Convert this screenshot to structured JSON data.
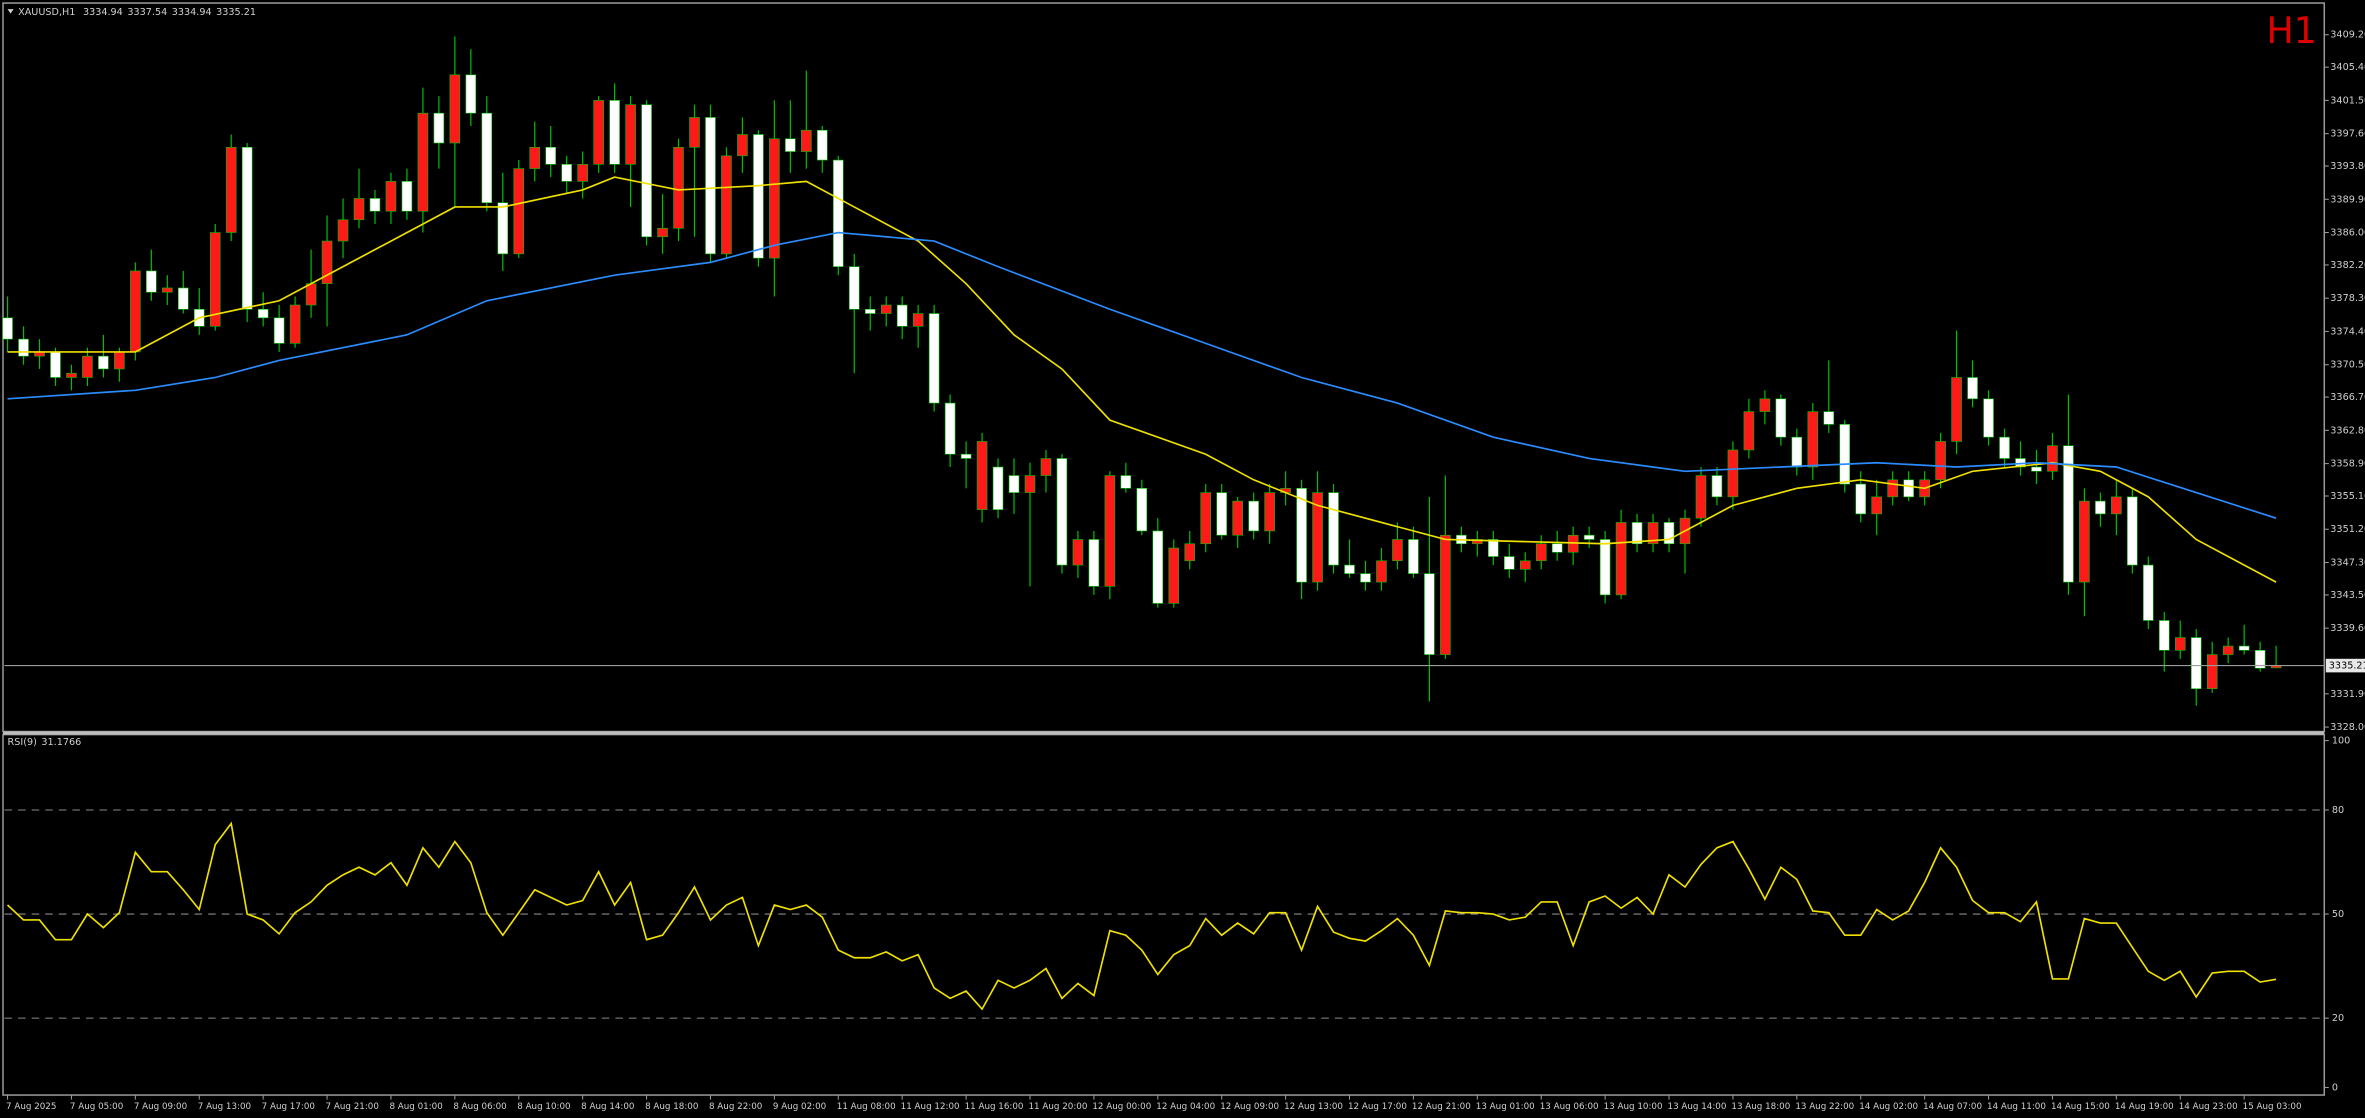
{
  "chart_data": {
    "type": "candlestick",
    "symbol": "XAUUSD,H1",
    "timeframe": "H1",
    "categories": [
      "7 Aug 2025",
      null,
      null,
      null,
      "7 Aug 05:00",
      null,
      null,
      null,
      "7 Aug 09:00",
      null,
      null,
      null,
      "7 Aug 13:00",
      null,
      null,
      null,
      "7 Aug 17:00",
      null,
      null,
      null,
      "7 Aug 21:00",
      null,
      null,
      null,
      "8 Aug 01:00",
      null,
      null,
      null,
      "8 Aug 06:00",
      null,
      null,
      null,
      "8 Aug 10:00",
      null,
      null,
      null,
      "8 Aug 14:00",
      null,
      null,
      null,
      "8 Aug 18:00",
      null,
      null,
      null,
      "8 Aug 22:00",
      null,
      null,
      null,
      "9 Aug 02:00",
      null,
      null,
      null,
      "11 Aug 08:00",
      null,
      null,
      null,
      "11 Aug 12:00",
      null,
      null,
      null,
      "11 Aug 16:00",
      null,
      null,
      null,
      "11 Aug 20:00",
      null,
      null,
      null,
      "12 Aug 00:00",
      null,
      null,
      null,
      "12 Aug 04:00",
      null,
      null,
      null,
      "12 Aug 09:00",
      null,
      null,
      null,
      "12 Aug 13:00",
      null,
      null,
      null,
      "12 Aug 17:00",
      null,
      null,
      null,
      "12 Aug 21:00",
      null,
      null,
      null,
      "13 Aug 01:00",
      null,
      null,
      null,
      "13 Aug 06:00",
      null,
      null,
      null,
      "13 Aug 10:00",
      null,
      null,
      null,
      "13 Aug 14:00",
      null,
      null,
      null,
      "13 Aug 18:00",
      null,
      null,
      null,
      "13 Aug 22:00",
      null,
      null,
      null,
      "14 Aug 02:00",
      null,
      null,
      null,
      "14 Aug 07:00",
      null,
      null,
      null,
      "14 Aug 11:00",
      null,
      null,
      null,
      "14 Aug 15:00",
      null,
      null,
      null,
      "14 Aug 19:00",
      null,
      null,
      null,
      "14 Aug 23:00",
      null,
      null,
      null,
      "15 Aug 03:00",
      null,
      null
    ],
    "ohlc": [
      [
        3376.0,
        3378.5,
        3372.0,
        3373.5
      ],
      [
        3373.5,
        3375.0,
        3370.5,
        3371.5
      ],
      [
        3371.5,
        3373.5,
        3370.0,
        3372.0
      ],
      [
        3372.0,
        3372.5,
        3368.0,
        3369.0
      ],
      [
        3369.0,
        3370.5,
        3367.5,
        3369.5
      ],
      [
        3369.0,
        3372.5,
        3368.0,
        3371.5
      ],
      [
        3371.5,
        3374.0,
        3369.0,
        3370.0
      ],
      [
        3370.0,
        3372.5,
        3368.5,
        3372.0
      ],
      [
        3372.0,
        3382.5,
        3371.0,
        3381.5
      ],
      [
        3381.5,
        3384.0,
        3378.0,
        3379.0
      ],
      [
        3379.0,
        3381.0,
        3377.5,
        3379.5
      ],
      [
        3379.5,
        3381.5,
        3376.5,
        3377.0
      ],
      [
        3377.0,
        3379.5,
        3374.0,
        3375.0
      ],
      [
        3375.0,
        3387.0,
        3374.5,
        3386.0
      ],
      [
        3386.0,
        3397.5,
        3385.0,
        3396.0
      ],
      [
        3396.0,
        3396.5,
        3375.5,
        3377.0
      ],
      [
        3377.0,
        3379.0,
        3375.0,
        3376.0
      ],
      [
        3376.0,
        3377.5,
        3372.0,
        3373.0
      ],
      [
        3373.0,
        3378.5,
        3372.5,
        3377.5
      ],
      [
        3377.5,
        3384.0,
        3376.0,
        3380.0
      ],
      [
        3380.0,
        3388.0,
        3375.0,
        3385.0
      ],
      [
        3385.0,
        3390.0,
        3383.0,
        3387.5
      ],
      [
        3387.5,
        3393.5,
        3386.5,
        3390.0
      ],
      [
        3390.0,
        3391.0,
        3387.0,
        3388.5
      ],
      [
        3388.5,
        3393.0,
        3387.0,
        3392.0
      ],
      [
        3392.0,
        3393.5,
        3387.5,
        3388.5
      ],
      [
        3388.5,
        3403.0,
        3386.0,
        3400.0
      ],
      [
        3400.0,
        3402.0,
        3393.5,
        3396.5
      ],
      [
        3396.5,
        3409.0,
        3389.0,
        3404.5
      ],
      [
        3404.5,
        3407.5,
        3398.5,
        3400.0
      ],
      [
        3400.0,
        3402.0,
        3388.5,
        3389.5
      ],
      [
        3389.5,
        3393.0,
        3381.5,
        3383.5
      ],
      [
        3383.5,
        3394.5,
        3383.0,
        3393.5
      ],
      [
        3393.5,
        3399.0,
        3392.0,
        3396.0
      ],
      [
        3396.0,
        3398.5,
        3392.5,
        3394.0
      ],
      [
        3394.0,
        3395.0,
        3390.5,
        3392.0
      ],
      [
        3392.0,
        3395.5,
        3390.0,
        3394.0
      ],
      [
        3394.0,
        3402.0,
        3393.0,
        3401.5
      ],
      [
        3401.5,
        3403.5,
        3393.0,
        3394.0
      ],
      [
        3394.0,
        3402.0,
        3389.0,
        3401.0
      ],
      [
        3401.0,
        3401.5,
        3384.5,
        3385.5
      ],
      [
        3385.5,
        3390.5,
        3383.5,
        3386.5
      ],
      [
        3386.5,
        3397.0,
        3385.0,
        3396.0
      ],
      [
        3396.0,
        3401.0,
        3385.5,
        3399.5
      ],
      [
        3399.5,
        3401.0,
        3382.5,
        3383.5
      ],
      [
        3383.5,
        3396.0,
        3383.0,
        3395.0
      ],
      [
        3395.0,
        3399.5,
        3393.0,
        3397.5
      ],
      [
        3397.5,
        3398.0,
        3382.0,
        3383.0
      ],
      [
        3383.0,
        3401.5,
        3378.5,
        3397.0
      ],
      [
        3397.0,
        3401.5,
        3393.0,
        3395.5
      ],
      [
        3395.5,
        3405.0,
        3393.5,
        3398.0
      ],
      [
        3398.0,
        3398.5,
        3393.0,
        3394.5
      ],
      [
        3394.5,
        3395.0,
        3381.0,
        3382.0
      ],
      [
        3382.0,
        3383.5,
        3369.5,
        3377.0
      ],
      [
        3377.0,
        3378.5,
        3374.5,
        3376.5
      ],
      [
        3376.5,
        3378.5,
        3375.0,
        3377.5
      ],
      [
        3377.5,
        3378.5,
        3373.5,
        3375.0
      ],
      [
        3375.0,
        3377.5,
        3372.5,
        3376.5
      ],
      [
        3376.5,
        3377.5,
        3365.0,
        3366.0
      ],
      [
        3366.0,
        3367.0,
        3358.5,
        3360.0
      ],
      [
        3360.0,
        3361.5,
        3356.0,
        3359.5
      ],
      [
        3353.5,
        3362.5,
        3352.0,
        3361.5
      ],
      [
        3358.5,
        3359.5,
        3352.5,
        3353.5
      ],
      [
        3357.5,
        3359.5,
        3353.0,
        3355.5
      ],
      [
        3355.5,
        3359.0,
        3344.5,
        3357.5
      ],
      [
        3357.5,
        3360.5,
        3355.5,
        3359.5
      ],
      [
        3359.5,
        3360.0,
        3346.0,
        3347.0
      ],
      [
        3347.0,
        3351.0,
        3345.5,
        3350.0
      ],
      [
        3350.0,
        3351.0,
        3343.5,
        3344.5
      ],
      [
        3344.5,
        3358.0,
        3343.0,
        3357.5
      ],
      [
        3357.5,
        3359.0,
        3355.5,
        3356.0
      ],
      [
        3356.0,
        3357.0,
        3350.5,
        3351.0
      ],
      [
        3351.0,
        3352.5,
        3342.0,
        3342.5
      ],
      [
        3342.5,
        3350.0,
        3342.0,
        3349.0
      ],
      [
        3347.5,
        3351.0,
        3346.5,
        3349.5
      ],
      [
        3349.5,
        3356.5,
        3348.5,
        3355.5
      ],
      [
        3355.5,
        3356.5,
        3350.0,
        3350.5
      ],
      [
        3350.5,
        3355.0,
        3349.0,
        3354.5
      ],
      [
        3354.5,
        3355.5,
        3350.0,
        3351.0
      ],
      [
        3351.0,
        3356.5,
        3349.5,
        3355.5
      ],
      [
        3355.5,
        3358.0,
        3354.0,
        3356.0
      ],
      [
        3356.0,
        3357.0,
        3343.0,
        3345.0
      ],
      [
        3345.0,
        3358.0,
        3344.0,
        3355.5
      ],
      [
        3355.5,
        3356.5,
        3346.0,
        3347.0
      ],
      [
        3347.0,
        3350.0,
        3345.5,
        3346.0
      ],
      [
        3346.0,
        3347.5,
        3344.0,
        3345.0
      ],
      [
        3345.0,
        3349.0,
        3344.0,
        3347.5
      ],
      [
        3347.5,
        3352.0,
        3346.5,
        3350.0
      ],
      [
        3350.0,
        3351.5,
        3345.5,
        3346.0
      ],
      [
        3346.0,
        3355.0,
        3331.0,
        3336.5
      ],
      [
        3336.5,
        3357.5,
        3336.0,
        3350.5
      ],
      [
        3350.5,
        3351.5,
        3348.5,
        3349.5
      ],
      [
        3349.5,
        3351.0,
        3348.0,
        3350.0
      ],
      [
        3350.0,
        3351.0,
        3347.0,
        3348.0
      ],
      [
        3348.0,
        3349.5,
        3345.5,
        3346.5
      ],
      [
        3346.5,
        3348.5,
        3345.0,
        3347.5
      ],
      [
        3347.5,
        3350.5,
        3346.5,
        3349.5
      ],
      [
        3349.5,
        3351.0,
        3347.5,
        3348.5
      ],
      [
        3348.5,
        3351.5,
        3347.0,
        3350.5
      ],
      [
        3350.5,
        3351.5,
        3349.0,
        3350.0
      ],
      [
        3350.0,
        3351.0,
        3342.5,
        3343.5
      ],
      [
        3343.5,
        3353.5,
        3343.0,
        3352.0
      ],
      [
        3352.0,
        3353.0,
        3348.5,
        3349.5
      ],
      [
        3349.5,
        3353.0,
        3348.5,
        3352.0
      ],
      [
        3352.0,
        3352.5,
        3348.5,
        3349.5
      ],
      [
        3349.5,
        3353.5,
        3346.0,
        3352.5
      ],
      [
        3352.5,
        3358.5,
        3351.5,
        3357.5
      ],
      [
        3357.5,
        3358.5,
        3354.0,
        3355.0
      ],
      [
        3355.0,
        3361.5,
        3353.5,
        3360.5
      ],
      [
        3360.5,
        3366.5,
        3359.5,
        3365.0
      ],
      [
        3365.0,
        3367.5,
        3363.5,
        3366.5
      ],
      [
        3366.5,
        3367.0,
        3361.0,
        3362.0
      ],
      [
        3362.0,
        3363.0,
        3357.5,
        3358.5
      ],
      [
        3358.5,
        3366.0,
        3357.0,
        3365.0
      ],
      [
        3365.0,
        3371.0,
        3362.5,
        3363.5
      ],
      [
        3363.5,
        3364.0,
        3355.5,
        3356.5
      ],
      [
        3356.5,
        3358.0,
        3352.0,
        3353.0
      ],
      [
        3353.0,
        3357.0,
        3350.5,
        3355.0
      ],
      [
        3355.0,
        3358.0,
        3354.0,
        3357.0
      ],
      [
        3357.0,
        3358.0,
        3354.5,
        3355.0
      ],
      [
        3355.0,
        3358.0,
        3354.0,
        3357.0
      ],
      [
        3357.0,
        3362.5,
        3356.0,
        3361.5
      ],
      [
        3361.5,
        3374.5,
        3360.0,
        3369.0
      ],
      [
        3369.0,
        3371.0,
        3365.5,
        3366.5
      ],
      [
        3366.5,
        3367.5,
        3361.0,
        3362.0
      ],
      [
        3362.0,
        3363.0,
        3358.5,
        3359.5
      ],
      [
        3359.5,
        3361.5,
        3357.5,
        3358.5
      ],
      [
        3358.5,
        3360.5,
        3356.5,
        3358.0
      ],
      [
        3358.0,
        3362.5,
        3357.0,
        3361.0
      ],
      [
        3361.0,
        3367.0,
        3343.5,
        3345.0
      ],
      [
        3345.0,
        3356.0,
        3341.0,
        3354.5
      ],
      [
        3354.5,
        3355.5,
        3351.5,
        3353.0
      ],
      [
        3353.0,
        3357.0,
        3350.5,
        3355.0
      ],
      [
        3355.0,
        3356.0,
        3346.0,
        3347.0
      ],
      [
        3347.0,
        3348.0,
        3339.5,
        3340.5
      ],
      [
        3340.5,
        3341.5,
        3334.5,
        3337.0
      ],
      [
        3337.0,
        3340.5,
        3336.0,
        3338.5
      ],
      [
        3338.5,
        3339.5,
        3330.5,
        3332.5
      ],
      [
        3332.5,
        3338.0,
        3332.0,
        3336.5
      ],
      [
        3336.5,
        3338.5,
        3335.5,
        3337.5
      ],
      [
        3337.5,
        3340.0,
        3336.5,
        3337.0
      ],
      [
        3337.0,
        3338.0,
        3334.5,
        3334.9
      ],
      [
        3334.94,
        3337.54,
        3334.94,
        3335.21
      ]
    ],
    "up_color": "#ff1a1a",
    "down_color": "#ffffff",
    "wick_color": "#00c000",
    "ylim": [
      3327.65,
      3412.74
    ],
    "yticks": [
      {
        "value": 3409.2,
        "label": "3409.20"
      },
      {
        "value": 3405.4,
        "label": "3405.40"
      },
      {
        "value": 3401.5,
        "label": "3401.50"
      },
      {
        "value": 3397.6,
        "label": "3397.60"
      },
      {
        "value": 3393.8,
        "label": "3393.80"
      },
      {
        "value": 3389.9,
        "label": "3389.90"
      },
      {
        "value": 3386.0,
        "label": "3386.00"
      },
      {
        "value": 3382.2,
        "label": "3382.20"
      },
      {
        "value": 3378.3,
        "label": "3378.30"
      },
      {
        "value": 3374.4,
        "label": "3374.40"
      },
      {
        "value": 3370.5,
        "label": "3370.50"
      },
      {
        "value": 3366.7,
        "label": "3366.70"
      },
      {
        "value": 3362.8,
        "label": "3362.80"
      },
      {
        "value": 3358.9,
        "label": "3358.90"
      },
      {
        "value": 3355.1,
        "label": "3355.10"
      },
      {
        "value": 3351.2,
        "label": "3351.20"
      },
      {
        "value": 3347.3,
        "label": "3347.30"
      },
      {
        "value": 3343.5,
        "label": "3343.50"
      },
      {
        "value": 3339.6,
        "label": "3339.60"
      },
      {
        "value": 3331.9,
        "label": "3331.90"
      },
      {
        "value": 3328.0,
        "label": "3328.00"
      }
    ],
    "last_price_line": true,
    "overlays": [
      {
        "color": "#f0e000",
        "x": [
          0,
          8,
          12,
          17,
          22,
          28,
          31,
          36,
          38,
          42,
          47,
          50,
          52,
          57,
          60,
          63,
          66,
          69,
          75,
          78,
          82,
          86,
          90,
          100,
          104,
          108,
          112,
          116,
          120,
          123,
          128,
          131,
          134,
          137,
          142
        ],
        "values": [
          3372,
          3372,
          3376,
          3378,
          3383,
          3389,
          3389,
          3391,
          3392.5,
          3391,
          3391.5,
          3392,
          3390,
          3385,
          3380,
          3374,
          3370,
          3364,
          3360,
          3357,
          3354,
          3352,
          3350,
          3349.5,
          3350,
          3354,
          3356,
          3357,
          3356,
          3358,
          3359,
          3358,
          3355,
          3350,
          3345
        ]
      },
      {
        "color": "#2b8cff",
        "x": [
          0,
          8,
          13,
          17,
          25,
          30,
          38,
          44,
          48,
          52,
          58,
          62,
          69,
          75,
          81,
          87,
          93,
          99,
          105,
          111,
          117,
          122,
          127,
          132,
          137,
          142
        ],
        "values": [
          3366.5,
          3367.5,
          3369,
          3371,
          3374,
          3378,
          3381,
          3382.5,
          3384.5,
          3386,
          3385,
          3382,
          3377,
          3373,
          3369,
          3366,
          3362,
          3359.5,
          3358,
          3358.5,
          3359,
          3358.5,
          3359,
          3358.5,
          3355.5,
          3352.5
        ]
      }
    ],
    "indicator": {
      "type": "line",
      "title": "RSI(9)",
      "color": "#f0e000",
      "values": [
        52.6,
        48.3,
        48.3,
        42.6,
        42.6,
        50.0,
        46.1,
        50.4,
        67.8,
        62.2,
        62.2,
        57.0,
        51.3,
        70.0,
        76.1,
        50.0,
        48.3,
        44.3,
        50.4,
        53.5,
        58.3,
        61.3,
        63.5,
        61.3,
        64.8,
        58.3,
        69.1,
        63.5,
        70.9,
        64.8,
        50.4,
        43.9,
        50.4,
        57.0,
        54.8,
        52.6,
        53.9,
        62.2,
        52.6,
        59.1,
        42.6,
        43.9,
        50.4,
        57.8,
        48.3,
        52.6,
        54.8,
        40.9,
        52.6,
        51.3,
        52.6,
        49.1,
        39.6,
        37.4,
        37.4,
        39.1,
        36.5,
        38.3,
        28.7,
        25.7,
        27.8,
        22.6,
        30.9,
        28.7,
        30.9,
        34.3,
        25.7,
        30.0,
        26.5,
        45.2,
        43.9,
        39.6,
        32.6,
        38.3,
        40.9,
        48.7,
        43.9,
        47.4,
        44.3,
        50.4,
        50.4,
        39.6,
        52.2,
        44.8,
        43.0,
        42.2,
        45.2,
        48.7,
        43.9,
        35.2,
        50.9,
        50.4,
        50.4,
        50.0,
        48.3,
        49.1,
        53.5,
        53.5,
        40.9,
        53.5,
        55.2,
        51.7,
        54.8,
        50.0,
        61.3,
        57.8,
        64.3,
        69.1,
        70.9,
        63.0,
        54.3,
        63.5,
        60.0,
        50.9,
        50.4,
        43.9,
        43.9,
        51.3,
        48.3,
        50.9,
        59.1,
        69.1,
        63.5,
        53.9,
        50.4,
        50.4,
        47.8,
        53.5,
        31.3,
        31.3,
        48.7,
        47.4,
        47.4,
        40.4,
        33.5,
        30.9,
        33.5,
        26.1,
        33.0,
        33.5,
        33.5,
        30.4,
        31.1766
      ],
      "ylim": [
        0,
        100
      ],
      "yticks": [
        100,
        80,
        50,
        20,
        0
      ],
      "levels": [
        80,
        50,
        20
      ]
    }
  }
}
